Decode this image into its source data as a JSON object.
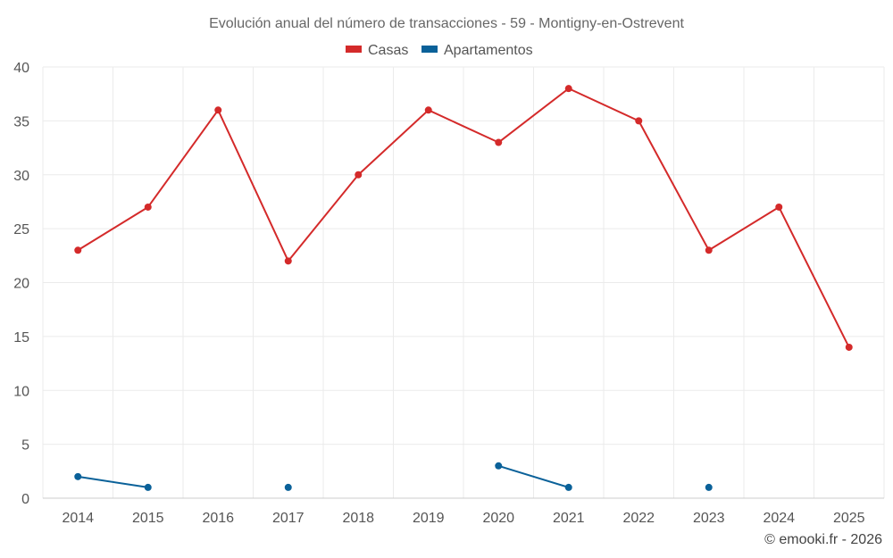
{
  "chart_data": {
    "type": "line",
    "title": "Evolución anual del número de transacciones - 59 - Montigny-en-Ostrevent",
    "categories": [
      "2014",
      "2015",
      "2016",
      "2017",
      "2018",
      "2019",
      "2020",
      "2021",
      "2022",
      "2023",
      "2024",
      "2025"
    ],
    "ylim": [
      0,
      40
    ],
    "yticks": [
      0,
      5,
      10,
      15,
      20,
      25,
      30,
      35,
      40
    ],
    "grid": true,
    "legend_position": "top-center",
    "series": [
      {
        "name": "Casas",
        "color": "#d42a2a",
        "values": [
          23,
          27,
          36,
          22,
          30,
          36,
          33,
          38,
          35,
          23,
          27,
          14
        ]
      },
      {
        "name": "Apartamentos",
        "color": "#0a6199",
        "values": [
          2,
          1,
          null,
          1,
          null,
          null,
          3,
          1,
          null,
          1,
          null,
          null
        ]
      }
    ],
    "credit": "© emooki.fr - 2026"
  }
}
